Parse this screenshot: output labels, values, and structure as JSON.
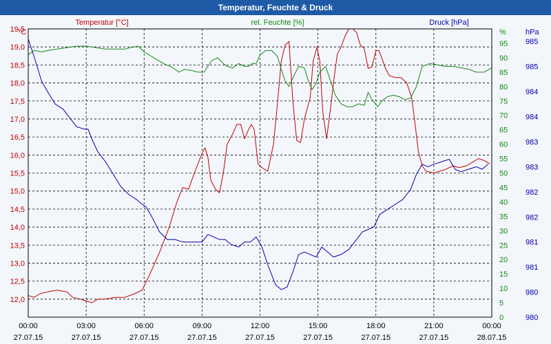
{
  "window": {
    "title": "Temperatur, Feuchte & Druck"
  },
  "colors": {
    "temperature": "#c00000",
    "humidity": "#118811",
    "pressure": "#0000aa",
    "grid": "#000000"
  },
  "chart_data": {
    "type": "line",
    "title": "Temperatur, Feuchte & Druck",
    "grid": true,
    "x": {
      "range_hours": [
        0,
        24
      ],
      "ticks": [
        {
          "hour": 0,
          "time": "00:00",
          "date": "27.07.15"
        },
        {
          "hour": 3,
          "time": "03:00",
          "date": "27.07.15"
        },
        {
          "hour": 6,
          "time": "06:00",
          "date": "27.07.15"
        },
        {
          "hour": 9,
          "time": "09:00",
          "date": "27.07.15"
        },
        {
          "hour": 12,
          "time": "12:00",
          "date": "27.07.15"
        },
        {
          "hour": 15,
          "time": "15:00",
          "date": "27.07.15"
        },
        {
          "hour": 18,
          "time": "18:00",
          "date": "27.07.15"
        },
        {
          "hour": 21,
          "time": "21:00",
          "date": "27.07.15"
        },
        {
          "hour": 24,
          "time": "00:00",
          "date": "28.07.15"
        }
      ]
    },
    "axes": {
      "temperature": {
        "label": "Temperatur [°C]",
        "unit": "°C",
        "ylim": [
          11.5,
          19.5
        ],
        "ticks": [
          "19,5",
          "19,0",
          "18,5",
          "18,0",
          "17,5",
          "17,0",
          "16,5",
          "16,0",
          "15,5",
          "15,0",
          "14,5",
          "14,0",
          "13,5",
          "13,0",
          "12,5",
          "12,0"
        ]
      },
      "humidity": {
        "label": "rel. Feuchte [%]",
        "unit": "%",
        "ylim": [
          0,
          100
        ],
        "ticks": [
          "95",
          "90",
          "85",
          "80",
          "75",
          "70",
          "65",
          "60",
          "55",
          "50",
          "45",
          "40",
          "35",
          "30",
          "25",
          "20",
          "15",
          "10",
          "5",
          "0"
        ]
      },
      "pressure": {
        "label": "Druck [hPa]",
        "unit": "hPa",
        "ylim": [
          979.75,
          985.5
        ],
        "ticks": [
          "985",
          "985",
          "984",
          "984",
          "983",
          "983",
          "982",
          "982",
          "981",
          "981",
          "980",
          "980"
        ]
      }
    },
    "series": [
      {
        "name": "Temperatur",
        "axis": "temperature",
        "points": [
          [
            0,
            12.1
          ],
          [
            0.3,
            12.05
          ],
          [
            0.6,
            12.15
          ],
          [
            1,
            12.2
          ],
          [
            1.5,
            12.25
          ],
          [
            2,
            12.2
          ],
          [
            2.3,
            12.05
          ],
          [
            2.7,
            12.0
          ],
          [
            3,
            11.95
          ],
          [
            3.3,
            11.9
          ],
          [
            3.6,
            12.0
          ],
          [
            4,
            12.0
          ],
          [
            4.5,
            12.05
          ],
          [
            5,
            12.05
          ],
          [
            5.5,
            12.15
          ],
          [
            5.9,
            12.25
          ],
          [
            6.3,
            12.7
          ],
          [
            6.8,
            13.3
          ],
          [
            7.3,
            14.0
          ],
          [
            7.7,
            14.7
          ],
          [
            8.0,
            15.1
          ],
          [
            8.3,
            15.05
          ],
          [
            8.6,
            15.5
          ],
          [
            9.0,
            16.05
          ],
          [
            9.15,
            16.2
          ],
          [
            9.3,
            15.95
          ],
          [
            9.45,
            15.3
          ],
          [
            9.7,
            15.05
          ],
          [
            9.9,
            14.95
          ],
          [
            10.1,
            15.5
          ],
          [
            10.3,
            16.3
          ],
          [
            10.6,
            16.6
          ],
          [
            10.8,
            16.85
          ],
          [
            11.0,
            16.85
          ],
          [
            11.2,
            16.45
          ],
          [
            11.4,
            16.7
          ],
          [
            11.55,
            16.85
          ],
          [
            11.7,
            16.7
          ],
          [
            11.9,
            15.75
          ],
          [
            12.1,
            15.65
          ],
          [
            12.4,
            15.55
          ],
          [
            12.7,
            16.3
          ],
          [
            12.9,
            17.4
          ],
          [
            13.1,
            18.6
          ],
          [
            13.3,
            19.05
          ],
          [
            13.5,
            19.15
          ],
          [
            13.7,
            17.5
          ],
          [
            13.9,
            16.4
          ],
          [
            14.1,
            16.35
          ],
          [
            14.3,
            17.0
          ],
          [
            14.6,
            17.6
          ],
          [
            14.75,
            18.6
          ],
          [
            14.95,
            19.0
          ],
          [
            15.1,
            18.6
          ],
          [
            15.25,
            17.2
          ],
          [
            15.45,
            16.45
          ],
          [
            15.65,
            17.3
          ],
          [
            15.85,
            18.2
          ],
          [
            16.0,
            18.8
          ],
          [
            16.2,
            19.0
          ],
          [
            16.4,
            19.3
          ],
          [
            16.6,
            19.5
          ],
          [
            16.8,
            19.5
          ],
          [
            17.0,
            19.4
          ],
          [
            17.2,
            19.05
          ],
          [
            17.4,
            18.95
          ],
          [
            17.6,
            18.4
          ],
          [
            17.8,
            18.45
          ],
          [
            18.0,
            18.9
          ],
          [
            18.15,
            18.9
          ],
          [
            18.3,
            18.7
          ],
          [
            18.5,
            18.4
          ],
          [
            18.7,
            18.2
          ],
          [
            19.0,
            18.15
          ],
          [
            19.3,
            18.15
          ],
          [
            19.6,
            18.0
          ],
          [
            19.85,
            17.6
          ],
          [
            20.0,
            17.0
          ],
          [
            20.2,
            16.1
          ],
          [
            20.4,
            15.7
          ],
          [
            20.6,
            15.55
          ],
          [
            21.0,
            15.5
          ],
          [
            21.3,
            15.55
          ],
          [
            21.6,
            15.6
          ],
          [
            22.0,
            15.7
          ],
          [
            22.3,
            15.65
          ],
          [
            22.7,
            15.7
          ],
          [
            23.0,
            15.8
          ],
          [
            23.3,
            15.9
          ],
          [
            23.6,
            15.85
          ],
          [
            23.9,
            15.75
          ]
        ]
      },
      {
        "name": "rel. Feuchte",
        "axis": "humidity",
        "points": [
          [
            0,
            91
          ],
          [
            0.3,
            92.5
          ],
          [
            0.7,
            92
          ],
          [
            1.0,
            92.5
          ],
          [
            1.5,
            93
          ],
          [
            2.0,
            93.5
          ],
          [
            2.5,
            94
          ],
          [
            3.0,
            94
          ],
          [
            3.5,
            93.5
          ],
          [
            4.0,
            93
          ],
          [
            4.5,
            93
          ],
          [
            5.0,
            93
          ],
          [
            5.3,
            93.5
          ],
          [
            5.7,
            94
          ],
          [
            6.0,
            92
          ],
          [
            6.5,
            90
          ],
          [
            7.0,
            88
          ],
          [
            7.5,
            86.5
          ],
          [
            7.8,
            85
          ],
          [
            8.1,
            86
          ],
          [
            8.5,
            85.5
          ],
          [
            8.8,
            85
          ],
          [
            9.1,
            85
          ],
          [
            9.3,
            87
          ],
          [
            9.5,
            89
          ],
          [
            9.8,
            90
          ],
          [
            10.1,
            88
          ],
          [
            10.3,
            87
          ],
          [
            10.6,
            86.5
          ],
          [
            10.9,
            88
          ],
          [
            11.2,
            87
          ],
          [
            11.4,
            87
          ],
          [
            11.6,
            88
          ],
          [
            11.8,
            88
          ],
          [
            12.0,
            91
          ],
          [
            12.3,
            92.5
          ],
          [
            12.6,
            92.5
          ],
          [
            12.9,
            90.5
          ],
          [
            13.1,
            86
          ],
          [
            13.3,
            82
          ],
          [
            13.5,
            80
          ],
          [
            13.7,
            83
          ],
          [
            14.0,
            87
          ],
          [
            14.3,
            86.5
          ],
          [
            14.5,
            82
          ],
          [
            14.7,
            79
          ],
          [
            14.9,
            81
          ],
          [
            15.1,
            85
          ],
          [
            15.4,
            87
          ],
          [
            15.6,
            83
          ],
          [
            15.9,
            77
          ],
          [
            16.2,
            74
          ],
          [
            16.5,
            73
          ],
          [
            16.8,
            73
          ],
          [
            17.1,
            74
          ],
          [
            17.4,
            73.5
          ],
          [
            17.6,
            78
          ],
          [
            17.8,
            75.5
          ],
          [
            18.1,
            73
          ],
          [
            18.3,
            75
          ],
          [
            18.6,
            76.5
          ],
          [
            18.9,
            77
          ],
          [
            19.2,
            76.5
          ],
          [
            19.5,
            75.5
          ],
          [
            19.8,
            76
          ],
          [
            20.1,
            80
          ],
          [
            20.4,
            87
          ],
          [
            20.8,
            88
          ],
          [
            21.2,
            87.5
          ],
          [
            21.6,
            87
          ],
          [
            22.0,
            87
          ],
          [
            22.4,
            86.5
          ],
          [
            22.8,
            86
          ],
          [
            23.2,
            85
          ],
          [
            23.6,
            85
          ],
          [
            24.0,
            86.5
          ]
        ]
      },
      {
        "name": "Druck",
        "axis": "pressure",
        "points": [
          [
            0,
            985.3
          ],
          [
            0.3,
            984.95
          ],
          [
            0.7,
            984.45
          ],
          [
            1.0,
            984.25
          ],
          [
            1.4,
            984.0
          ],
          [
            1.8,
            983.9
          ],
          [
            2.2,
            983.7
          ],
          [
            2.5,
            983.55
          ],
          [
            2.9,
            983.5
          ],
          [
            3.1,
            983.5
          ],
          [
            3.3,
            983.3
          ],
          [
            3.6,
            983.05
          ],
          [
            4.0,
            982.85
          ],
          [
            4.4,
            982.6
          ],
          [
            4.8,
            982.35
          ],
          [
            5.2,
            982.2
          ],
          [
            5.6,
            982.1
          ],
          [
            5.9,
            982.0
          ],
          [
            6.1,
            981.95
          ],
          [
            6.4,
            981.75
          ],
          [
            6.8,
            981.45
          ],
          [
            7.2,
            981.3
          ],
          [
            7.6,
            981.3
          ],
          [
            8.0,
            981.25
          ],
          [
            8.5,
            981.25
          ],
          [
            9.0,
            981.25
          ],
          [
            9.3,
            981.4
          ],
          [
            9.6,
            981.35
          ],
          [
            9.9,
            981.3
          ],
          [
            10.2,
            981.3
          ],
          [
            10.5,
            981.2
          ],
          [
            10.9,
            981.15
          ],
          [
            11.2,
            981.25
          ],
          [
            11.5,
            981.25
          ],
          [
            11.8,
            981.35
          ],
          [
            12.1,
            981.15
          ],
          [
            12.4,
            980.8
          ],
          [
            12.8,
            980.4
          ],
          [
            13.1,
            980.3
          ],
          [
            13.4,
            980.35
          ],
          [
            13.7,
            980.65
          ],
          [
            14.0,
            981.0
          ],
          [
            14.3,
            981.05
          ],
          [
            14.6,
            981.0
          ],
          [
            14.9,
            980.95
          ],
          [
            15.2,
            981.15
          ],
          [
            15.5,
            981.05
          ],
          [
            15.8,
            980.95
          ],
          [
            16.2,
            981.0
          ],
          [
            16.6,
            981.1
          ],
          [
            17.0,
            981.3
          ],
          [
            17.3,
            981.45
          ],
          [
            17.6,
            981.5
          ],
          [
            17.9,
            981.55
          ],
          [
            18.2,
            981.8
          ],
          [
            18.6,
            981.9
          ],
          [
            19.0,
            982.0
          ],
          [
            19.4,
            982.1
          ],
          [
            19.8,
            982.3
          ],
          [
            20.1,
            982.6
          ],
          [
            20.4,
            982.8
          ],
          [
            20.7,
            982.75
          ],
          [
            21.0,
            982.8
          ],
          [
            21.4,
            982.85
          ],
          [
            21.8,
            982.9
          ],
          [
            22.1,
            982.7
          ],
          [
            22.4,
            982.65
          ],
          [
            22.8,
            982.7
          ],
          [
            23.2,
            982.75
          ],
          [
            23.5,
            982.7
          ],
          [
            23.8,
            982.8
          ]
        ]
      }
    ]
  }
}
